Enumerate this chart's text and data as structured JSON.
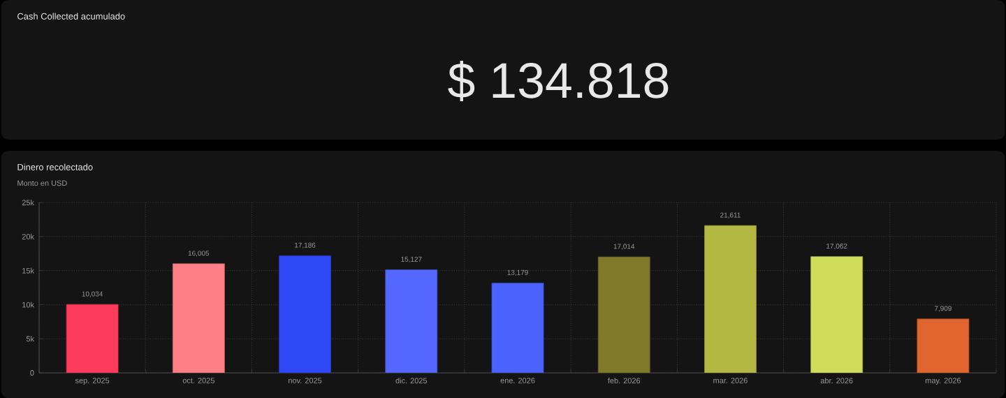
{
  "chart_data": [
    {
      "type": "other",
      "title": "Cash Collected acumulado",
      "annotations": [
        "$ 134.818"
      ]
    },
    {
      "type": "bar",
      "title": "Dinero recolectado",
      "subtitle": "Monto en USD",
      "categories": [
        "sep. 2025",
        "oct. 2025",
        "nov. 2025",
        "dic. 2025",
        "ene. 2026",
        "feb. 2026",
        "mar. 2026",
        "abr. 2026",
        "may. 2026"
      ],
      "values": [
        10034,
        16005,
        17186,
        15127,
        13179,
        17014,
        21611,
        17062,
        7909
      ],
      "value_labels": [
        "10,034",
        "16,005",
        "17,186",
        "15,127",
        "13,179",
        "17,014",
        "21,611",
        "17,062",
        "7,909"
      ],
      "colors": [
        "#ff3b5c",
        "#ff7f86",
        "#2f48f5",
        "#5468ff",
        "#4a63ff",
        "#7f792b",
        "#b3b843",
        "#d0dd5a",
        "#e0652f"
      ],
      "ylim": [
        0,
        25000
      ],
      "yticks": [
        0,
        {
          "value": 5000,
          "label": "5k"
        },
        {
          "value": 10000,
          "label": "10k"
        },
        {
          "value": 15000,
          "label": "15k"
        },
        {
          "value": 20000,
          "label": "20k"
        },
        {
          "value": 25000,
          "label": "25k"
        }
      ],
      "grid": true
    }
  ]
}
